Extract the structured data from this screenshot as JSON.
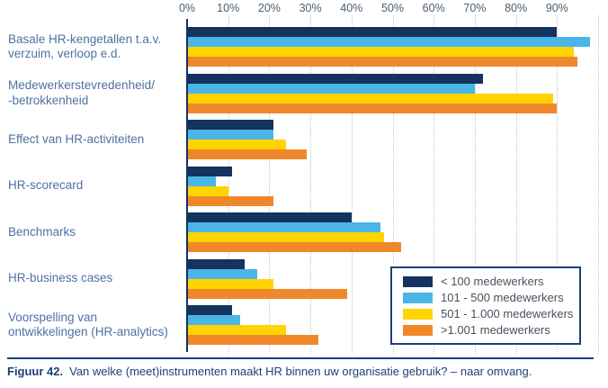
{
  "figure": {
    "caption_label": "Figuur 42.",
    "caption_text": "Van welke (meet)instrumenten maakt HR binnen uw organisatie gebruik? – naar omvang."
  },
  "chart_data": {
    "type": "bar",
    "orientation": "horizontal",
    "title": "",
    "xlabel": "",
    "ylabel": "",
    "x_axis": {
      "tick_labels": [
        "0%",
        "10%",
        "20%",
        "30%",
        "40%",
        "50%",
        "60%",
        "70%",
        "80%",
        "90%"
      ],
      "range": [
        0,
        100
      ],
      "grid": "dotted vertical lines every 10% up to 100%"
    },
    "legend_position": "bottom-right",
    "categories": [
      "Basale HR-kengetallen t.a.v.\nverzuim, verloop e.d.",
      "Medewerkerstevredenheid/\n-betrokkenheid",
      "Effect van HR-activiteiten",
      "HR-scorecard",
      "Benchmarks",
      "HR-business cases",
      "Voorspelling van\nontwikkelingen (HR-analytics)"
    ],
    "series": [
      {
        "name": "< 100 medewerkers",
        "color": "#14335e",
        "values": [
          90,
          72,
          21,
          11,
          40,
          14,
          11
        ]
      },
      {
        "name": "101 - 500 medewerkers",
        "color": "#4cb5e8",
        "values": [
          98,
          70,
          21,
          7,
          47,
          17,
          13
        ]
      },
      {
        "name": "501 - 1.000 medewerkers",
        "color": "#ffd400",
        "values": [
          94,
          89,
          24,
          10,
          48,
          21,
          24
        ]
      },
      {
        "name": ">1.001 medewerkers",
        "color": "#f0882b",
        "values": [
          95,
          90,
          29,
          21,
          52,
          39,
          32
        ]
      }
    ],
    "colors": {
      "axis_line": "#14335e",
      "gridline": "#c0c6cd",
      "category_label": "#4e71a3",
      "tick_label": "#4b5c70",
      "legend_text": "#47525f",
      "caption": "#1d3f78"
    }
  }
}
